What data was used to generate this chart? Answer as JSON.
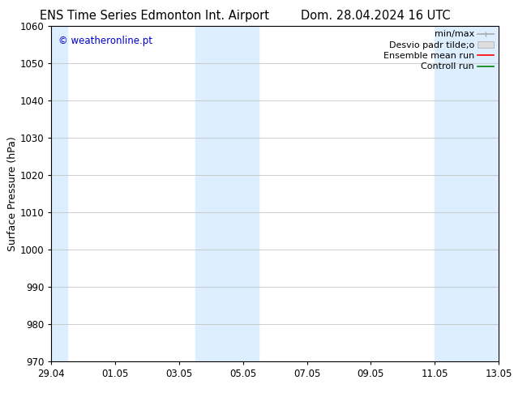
{
  "title_left": "ENS Time Series Edmonton Int. Airport",
  "title_right": "Dom. 28.04.2024 16 UTC",
  "ylabel": "Surface Pressure (hPa)",
  "ylim": [
    970,
    1060
  ],
  "yticks": [
    970,
    980,
    990,
    1000,
    1010,
    1020,
    1030,
    1040,
    1050,
    1060
  ],
  "xtick_labels": [
    "29.04",
    "01.05",
    "03.05",
    "05.05",
    "07.05",
    "09.05",
    "11.05",
    "13.05"
  ],
  "watermark": "© weatheronline.pt",
  "watermark_color": "#0000cc",
  "shaded_color": "#ddeeff",
  "bg_color": "#ffffff",
  "grid_color": "#bbbbbb",
  "title_fontsize": 10.5,
  "tick_fontsize": 8.5,
  "ylabel_fontsize": 9,
  "legend_fontsize": 8
}
